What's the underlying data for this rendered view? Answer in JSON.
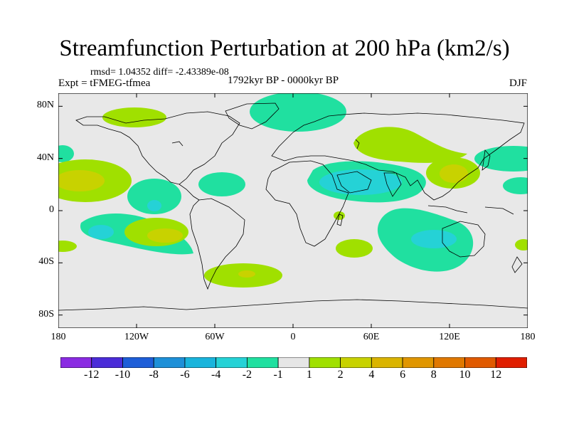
{
  "figure": {
    "title": "Streamfunction Perturbation at 200 hPa (km2/s)",
    "stats": "rmsd= 1.04352 diff= -2.43389e-08",
    "experiment": "Expt = tFMEG-tfmea",
    "period": "1792kyr BP - 0000kyr BP",
    "season": "DJF"
  },
  "colors": {
    "ocean_background": "#e8e8e8",
    "coastline": "#000000"
  },
  "axes": {
    "lat_ticks": [
      {
        "label": "80N",
        "value": 80
      },
      {
        "label": "40N",
        "value": 40
      },
      {
        "label": "0",
        "value": 0
      },
      {
        "label": "40S",
        "value": -40
      },
      {
        "label": "80S",
        "value": -80
      }
    ],
    "lon_ticks": [
      {
        "label": "180",
        "value": -180
      },
      {
        "label": "120W",
        "value": -120
      },
      {
        "label": "60W",
        "value": -60
      },
      {
        "label": "0",
        "value": 0
      },
      {
        "label": "60E",
        "value": 60
      },
      {
        "label": "120E",
        "value": 120
      },
      {
        "label": "180",
        "value": 180
      }
    ],
    "lat_range": [
      -90,
      90
    ],
    "lon_range": [
      -180,
      180
    ]
  },
  "colorbar": {
    "colors": [
      "#8a2be2",
      "#4b2cd8",
      "#1e5ed8",
      "#1e90d8",
      "#19b4dc",
      "#25d2d6",
      "#20e0a0",
      "#e6e6e6",
      "#a0e000",
      "#c8d200",
      "#dab400",
      "#e09600",
      "#e07800",
      "#e05a00",
      "#e01e00"
    ],
    "labels": [
      "-12",
      "-10",
      "-8",
      "-6",
      "-4",
      "-2",
      "-1",
      "1",
      "2",
      "4",
      "6",
      "8",
      "10",
      "12"
    ]
  },
  "chart_data": {
    "type": "map",
    "variable": "Streamfunction Perturbation at 200 hPa",
    "units": "km2/s",
    "levels": [
      -12,
      -10,
      -8,
      -6,
      -4,
      -2,
      -1,
      1,
      2,
      4,
      6,
      8,
      10,
      12
    ],
    "anomalies": [
      {
        "name": "north-atlantic-europe-negative",
        "lon": 0,
        "lat": 72,
        "value": -1.5
      },
      {
        "name": "arabia-indian-ocean-negative",
        "lon": 55,
        "lat": 18,
        "value": -3
      },
      {
        "name": "indian-ocean-australia-negative",
        "lon": 100,
        "lat": -18,
        "value": -3
      },
      {
        "name": "tropical-east-pacific-negative",
        "lon": -105,
        "lat": 8,
        "value": -2
      },
      {
        "name": "south-east-pacific-negative",
        "lon": -140,
        "lat": -15,
        "value": -2
      },
      {
        "name": "north-atlantic-negative",
        "lon": -55,
        "lat": 22,
        "value": -1.5
      },
      {
        "name": "west-pacific-east-negative",
        "lon": 160,
        "lat": 42,
        "value": -1.5
      },
      {
        "name": "central-pacific-positive",
        "lon": -160,
        "lat": 12,
        "value": 3
      },
      {
        "name": "south-pacific-positive",
        "lon": -100,
        "lat": -15,
        "value": 3
      },
      {
        "name": "central-asia-positive",
        "lon": 75,
        "lat": 45,
        "value": 2
      },
      {
        "name": "east-asia-positive",
        "lon": 120,
        "lat": 30,
        "value": 2
      },
      {
        "name": "south-atlantic-positive",
        "lon": -40,
        "lat": -48,
        "value": 2.5
      },
      {
        "name": "southern-africa-positive",
        "lon": 45,
        "lat": -30,
        "value": 1.5
      },
      {
        "name": "north-pacific-positive",
        "lon": -140,
        "lat": 72,
        "value": 1.5
      }
    ]
  }
}
